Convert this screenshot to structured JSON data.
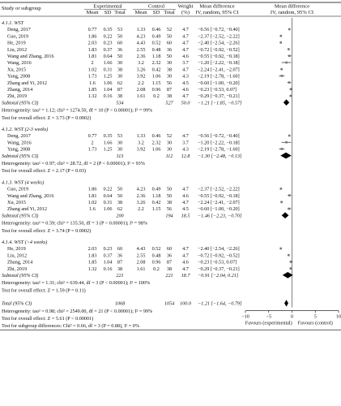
{
  "header": {
    "study": "Study or subgroup",
    "experimental": "Experimental",
    "control": "Control",
    "weight": "Weight",
    "weight_unit": "(%)",
    "md1_l1": "Mean difference",
    "md1_l2": "IV, random, 95% CI",
    "md2_l1": "Mean difference",
    "md2_l2": "IV, random, 95% CI",
    "mean": "Mean",
    "sd": "SD",
    "total": "Total"
  },
  "footer": {
    "total_label": "Total (95% CI)",
    "total_exp_n": "1068",
    "total_ctl_n": "1054",
    "total_weight": "100.0",
    "total_ci": "−1.21 [−1.64, −0.79]",
    "heterogeneity": "Heterogeneity: tau² = 0.98; chi² = 2549.00, df = 21 (P < 0.00001); I² = 99%",
    "overall": "Test for overall effect: Z = 5.61 (P < 0.00001)",
    "subgroup_diff": "Test for subgroup differences: Chi² = 0.66, df = 3 (P = 0.88), I² = 0%",
    "favours_left": "Favours (experimental)",
    "favours_right": "Favours (control)"
  },
  "colors": {
    "marker": "#777777",
    "diamond": "#000000",
    "line": "#000000"
  },
  "chart_data": {
    "type": "forest",
    "xlim": [
      -10,
      10
    ],
    "xticks": [
      "−10",
      "−5",
      "0",
      "5",
      "10"
    ],
    "xtick_values": [
      -10,
      -5,
      0,
      5,
      10
    ],
    "overall": {
      "md": -1.21,
      "lo": -1.64,
      "hi": -0.79
    },
    "subgroups": [
      {
        "title": "4.1.1. WST",
        "studies": [
          {
            "name": "Deng, 2017",
            "em": "0.77",
            "esd": "0.35",
            "en": "53",
            "cm": "1.33",
            "csd": "0.46",
            "cn": "52",
            "w": "4.7",
            "ci": "−0.56 [−0.72, −0.40]",
            "md": -0.56,
            "lo": -0.72,
            "hi": -0.4
          },
          {
            "name": "Guo, 2019",
            "em": "1.86",
            "esd": "0.22",
            "en": "50",
            "cm": "4.23",
            "csd": "0.49",
            "cn": "50",
            "w": "4.7",
            "ci": "−2.37 [−2.52, −2.22]",
            "md": -2.37,
            "lo": -2.52,
            "hi": -2.22
          },
          {
            "name": "He, 2019",
            "em": "2.03",
            "esd": "0.23",
            "en": "60",
            "cm": "4.43",
            "csd": "0.52",
            "cn": "60",
            "w": "4.7",
            "ci": "−2.40 [−2.54, −2.26]",
            "md": -2.4,
            "lo": -2.54,
            "hi": -2.26
          },
          {
            "name": "Liu, 2012",
            "em": "1.83",
            "esd": "0.37",
            "en": "36",
            "cm": "2.55",
            "csd": "0.48",
            "cn": "36",
            "w": "4.7",
            "ci": "−0.72 [−0.92, −0.52]",
            "md": -0.72,
            "lo": -0.92,
            "hi": -0.52
          },
          {
            "name": "Wang and Zhang, 2016",
            "em": "1.81",
            "esd": "0.64",
            "en": "50",
            "cm": "2.36",
            "csd": "1.18",
            "cn": "50",
            "w": "4.6",
            "ci": "−0.55 [−0.92, −0.18]",
            "md": -0.55,
            "lo": -0.92,
            "hi": -0.18
          },
          {
            "name": "Wang, 2016",
            "em": "2",
            "esd": "1.66",
            "en": "30",
            "cm": "3.2",
            "csd": "2.32",
            "cn": "30",
            "w": "3.7",
            "ci": "−1.20 [−2.22, −0.18]",
            "md": -1.2,
            "lo": -2.22,
            "hi": -0.18
          },
          {
            "name": "Xu, 2015",
            "em": "1.02",
            "esd": "0.31",
            "en": "38",
            "cm": "3.26",
            "csd": "0.42",
            "cn": "38",
            "w": "4.7",
            "ci": "−2.24 [−2.41, −2.07]",
            "md": -2.24,
            "lo": -2.41,
            "hi": -2.07
          },
          {
            "name": "Yang, 2008",
            "em": "1.73",
            "esd": "1.25",
            "en": "30",
            "cm": "3.92",
            "csd": "1.06",
            "cn": "30",
            "w": "4.3",
            "ci": "−2.19 [−2.78, −1.60]",
            "md": -2.19,
            "lo": -2.78,
            "hi": -1.6
          },
          {
            "name": "Zhang and Yi, 2012",
            "em": "1.6",
            "esd": "1.06",
            "en": "62",
            "cm": "2.2",
            "csd": "1.15",
            "cn": "56",
            "w": "4.5",
            "ci": "−0.60 [−1.00, −0.20]",
            "md": -0.6,
            "lo": -1.0,
            "hi": -0.2
          },
          {
            "name": "Zhang, 2014",
            "em": "1.85",
            "esd": "1.04",
            "en": "87",
            "cm": "2.08",
            "csd": "0.96",
            "cn": "87",
            "w": "4.6",
            "ci": "−0.23 [−0.53, 0.07]",
            "md": -0.23,
            "lo": -0.53,
            "hi": 0.07
          },
          {
            "name": "Zhi, 2019",
            "em": "1.32",
            "esd": "0.16",
            "en": "38",
            "cm": "1.61",
            "csd": "0.2",
            "cn": "38",
            "w": "4.7",
            "ci": "−0.29 [−0.37, −0.21]",
            "md": -0.29,
            "lo": -0.37,
            "hi": -0.21
          }
        ],
        "subtotal": {
          "label": "Subtotal (95% CI)",
          "en": "534",
          "cn": "527",
          "w": "50.0",
          "ci": "−1.21 [−1.85, −0.57]",
          "md": -1.21,
          "lo": -1.85,
          "hi": -0.57
        },
        "het": "Heterogeneity: tau² = 1.12; chi² = 1274.50, df = 10 (P < 0.00001); I² = 99%",
        "test": "Test for overall effect: Z = 3.73 (P = 0.0002)"
      },
      {
        "title": "4.1.2. WST (2-3 weeks)",
        "studies": [
          {
            "name": "Deng, 2017",
            "em": "0.77",
            "esd": "0.35",
            "en": "53",
            "cm": "1.33",
            "csd": "0.46",
            "cn": "52",
            "w": "4.7",
            "ci": "−0.56 [−0.72, −0.40]",
            "md": -0.56,
            "lo": -0.72,
            "hi": -0.4
          },
          {
            "name": "Wang, 2016",
            "em": "2",
            "esd": "1.66",
            "en": "30",
            "cm": "3.2",
            "csd": "2.32",
            "cn": "30",
            "w": "3.7",
            "ci": "−1.20 [−2.22, −0.18]",
            "md": -1.2,
            "lo": -2.22,
            "hi": -0.18
          },
          {
            "name": "Yang, 2008",
            "em": "1.73",
            "esd": "1.25",
            "en": "30",
            "cm": "3.92",
            "csd": "1.06",
            "cn": "30",
            "w": "4.3",
            "ci": "−2.19 [−2.78, −1.60]",
            "md": -2.19,
            "lo": -2.78,
            "hi": -1.6
          }
        ],
        "subtotal": {
          "label": "Subtotal (95% CI)",
          "en": "113",
          "cn": "112",
          "w": "12.8",
          "ci": "−1.30 [−2.48, −0.13]",
          "md": -1.3,
          "lo": -2.48,
          "hi": -0.13
        },
        "het": "Heterogeneity: tau² = 0.97; chi² = 28.72, df = 2 (P < 0.00001); I² = 93%",
        "test": "Test for overall effect: Z = 2.17 (P = 0.03)"
      },
      {
        "title": "4.1.3. WST (4 weeks)",
        "studies": [
          {
            "name": "Guo, 2019",
            "em": "1.86",
            "esd": "0.22",
            "en": "50",
            "cm": "4.23",
            "csd": "0.49",
            "cn": "50",
            "w": "4.7",
            "ci": "−2.37 [−2.52, −2.22]",
            "md": -2.37,
            "lo": -2.52,
            "hi": -2.22
          },
          {
            "name": "Wang and Zhang, 2016",
            "em": "1.81",
            "esd": "0.64",
            "en": "50",
            "cm": "2.36",
            "csd": "1.18",
            "cn": "50",
            "w": "4.6",
            "ci": "−0.55 [−0.92, −0.18]",
            "md": -0.55,
            "lo": -0.92,
            "hi": -0.18
          },
          {
            "name": "Xu, 2015",
            "em": "1.02",
            "esd": "0.31",
            "en": "38",
            "cm": "3.26",
            "csd": "0.42",
            "cn": "38",
            "w": "4.7",
            "ci": "−2.24 [−2.41, −2.07]",
            "md": -2.24,
            "lo": -2.41,
            "hi": -2.07
          },
          {
            "name": "Zhang and Yi, 2012",
            "em": "1.6",
            "esd": "1.06",
            "en": "62",
            "cm": "2.2",
            "csd": "1.15",
            "cn": "56",
            "w": "4.5",
            "ci": "−0.60 [−1.00, −0.20]",
            "md": -0.6,
            "lo": -1.0,
            "hi": -0.2
          }
        ],
        "subtotal": {
          "label": "Subtotal (95% CI)",
          "en": "200",
          "cn": "194",
          "w": "18.5",
          "ci": "−1.46 [−2.23, −0.70]",
          "md": -1.46,
          "lo": -2.23,
          "hi": -0.7
        },
        "het": "Heterogeneity: tau² = 0.59; chi² = 135.50, df = 3 (P < 0.00001); I² = 98%",
        "test": "Test for overall effect: Z = 3.74 (P = 0.0002)"
      },
      {
        "title": "4.1.4. WST (>4 weeks)",
        "studies": [
          {
            "name": "He, 2019",
            "em": "2.03",
            "esd": "0.23",
            "en": "60",
            "cm": "4.43",
            "csd": "0.52",
            "cn": "60",
            "w": "4.7",
            "ci": "−2.40 [−2.54, −2.26]",
            "md": -2.4,
            "lo": -2.54,
            "hi": -2.26
          },
          {
            "name": "Liu, 2012",
            "em": "1.83",
            "esd": "0.37",
            "en": "36",
            "cm": "2.55",
            "csd": "0.48",
            "cn": "36",
            "w": "4.7",
            "ci": "−0.72 [−0.92, −0.52]",
            "md": -0.72,
            "lo": -0.92,
            "hi": -0.52
          },
          {
            "name": "Zhang, 2014",
            "em": "1.85",
            "esd": "1.04",
            "en": "87",
            "cm": "2.08",
            "csd": "0.96",
            "cn": "87",
            "w": "4.6",
            "ci": "−0.23 [−0.53, 0.07]",
            "md": -0.23,
            "lo": -0.53,
            "hi": 0.07
          },
          {
            "name": "Zhi, 2019",
            "em": "1.32",
            "esd": "0.16",
            "en": "38",
            "cm": "1.61",
            "csd": "0.2",
            "cn": "38",
            "w": "4.7",
            "ci": "−0.29 [−0.37, −0.21]",
            "md": -0.29,
            "lo": -0.37,
            "hi": -0.21
          }
        ],
        "subtotal": {
          "label": "Subtotal (95% CI)",
          "en": "221",
          "cn": "221",
          "w": "18.7",
          "ci": "−0.91 [−2.04, 0.21]",
          "md": -0.91,
          "lo": -2.04,
          "hi": 0.21
        },
        "het": "Heterogeneity: tau² = 1.31; chi² = 639.44, df = 3 (P < 0.00001); I² = 100%",
        "test": "Test for overall effect: Z = 1.59 (P = 0.11)"
      }
    ]
  }
}
